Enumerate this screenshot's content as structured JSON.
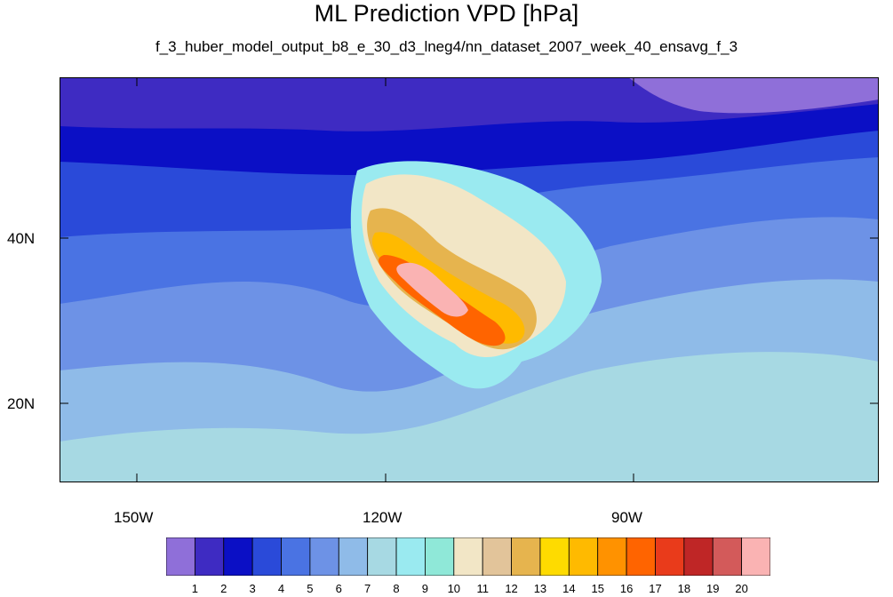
{
  "title": "ML Prediction VPD [hPa]",
  "subtitle": "f_3_huber_model_output_b8_e_30_d3_lneg4/nn_dataset_2007_week_40_ensavg_f_3",
  "map": {
    "x_ticks": [
      "150W",
      "120W",
      "90W"
    ],
    "y_ticks": [
      "40N",
      "20N"
    ]
  },
  "colorbar": {
    "labels": [
      "1",
      "2",
      "3",
      "4",
      "5",
      "6",
      "7",
      "8",
      "9",
      "10",
      "11",
      "12",
      "13",
      "14",
      "15",
      "16",
      "17",
      "18",
      "19",
      "20"
    ],
    "colors": [
      "#8f6fd9",
      "#3e2bc2",
      "#0b0fc5",
      "#2a4ad9",
      "#4a73e3",
      "#6d92e6",
      "#8fbbe8",
      "#a7d9e3",
      "#9aeaf0",
      "#8fe8d8",
      "#f2e6c6",
      "#e2c49a",
      "#e6b44e",
      "#fedb00",
      "#ffba00",
      "#ff9200",
      "#ff6400",
      "#e93b1b",
      "#bf2626",
      "#d35a5a",
      "#fab3b3"
    ]
  },
  "legend_values": {
    "ocean_far": "#8fbbe8",
    "ocean_near": "#a7d9e3"
  }
}
